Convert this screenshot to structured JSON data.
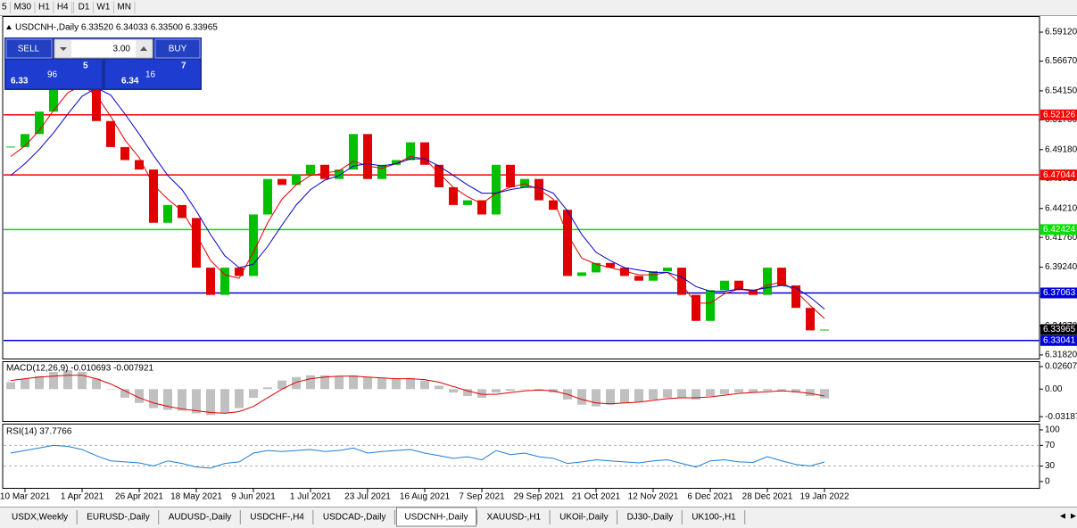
{
  "toolbar": {
    "timeframes": [
      "5",
      "M30",
      "H1",
      "H4",
      "D1",
      "W1",
      "MN"
    ]
  },
  "trade_panel": {
    "sell": "SELL",
    "lot": "3.00",
    "buy": "BUY",
    "bid_base": "6.33",
    "bid_big": "96",
    "bid_sup": "5",
    "ask_base": "6.34",
    "ask_big": "16",
    "ask_sup": "7"
  },
  "chart_data": [
    {
      "type": "candlestick",
      "title": "USDCNH-,Daily 6.33520 6.34033 6.33500 6.33965",
      "categories": [
        null,
        "10 Mar 2021",
        null,
        null,
        null,
        "1 Apr 2021",
        null,
        null,
        null,
        "26 Apr 2021",
        null,
        null,
        null,
        "18 May 2021",
        null,
        null,
        null,
        "9 Jun 2021",
        null,
        null,
        null,
        "1 Jul 2021",
        null,
        null,
        null,
        "23 Jul 2021",
        null,
        null,
        null,
        "16 Aug 2021",
        null,
        null,
        null,
        "7 Sep 2021",
        null,
        null,
        null,
        "29 Sep 2021",
        null,
        null,
        null,
        "21 Oct 2021",
        null,
        null,
        null,
        "12 Nov 2021",
        null,
        null,
        null,
        "6 Dec 2021",
        null,
        null,
        null,
        "28 Dec 2021",
        null,
        null,
        null,
        "19 Jan 2022"
      ],
      "values": [
        6.494,
        6.505,
        6.524,
        6.547,
        6.55,
        6.543,
        6.516,
        6.494,
        6.483,
        6.475,
        6.43,
        6.445,
        6.434,
        6.392,
        6.369,
        6.392,
        6.385,
        6.437,
        6.467,
        6.462,
        6.471,
        6.479,
        6.467,
        6.475,
        6.505,
        6.467,
        6.479,
        6.483,
        6.498,
        6.479,
        6.46,
        6.445,
        6.449,
        6.437,
        6.479,
        6.46,
        6.467,
        6.449,
        6.441,
        6.385,
        6.388,
        6.396,
        6.392,
        6.385,
        6.381,
        6.389,
        6.392,
        6.369,
        6.347,
        6.373,
        6.381,
        6.373,
        6.369,
        6.392,
        6.377,
        6.358,
        6.339,
        6.33965
      ],
      "up_color": "#00c000",
      "down_color": "#e00000",
      "series": [
        {
          "color": "#e00000",
          "values": [
            6.486,
            6.495,
            6.508,
            6.525,
            6.54,
            6.546,
            6.538,
            6.52,
            6.5,
            6.485,
            6.462,
            6.45,
            6.44,
            6.42,
            6.398,
            6.386,
            6.383,
            6.405,
            6.43,
            6.45,
            6.462,
            6.47,
            6.472,
            6.474,
            6.482,
            6.478,
            6.476,
            6.48,
            6.486,
            6.484,
            6.472,
            6.46,
            6.452,
            6.446,
            6.455,
            6.46,
            6.463,
            6.458,
            6.45,
            6.42,
            6.4,
            6.395,
            6.392,
            6.389,
            6.386,
            6.386,
            6.388,
            6.378,
            6.362,
            6.362,
            6.37,
            6.374,
            6.372,
            6.377,
            6.38,
            6.372,
            6.36,
            6.349
          ]
        },
        {
          "color": "#0000c8",
          "values": [
            6.47,
            6.48,
            6.492,
            6.506,
            6.522,
            6.537,
            6.544,
            6.538,
            6.522,
            6.505,
            6.487,
            6.47,
            6.458,
            6.44,
            6.42,
            6.402,
            6.392,
            6.395,
            6.41,
            6.428,
            6.445,
            6.458,
            6.466,
            6.47,
            6.478,
            6.48,
            6.478,
            6.48,
            6.484,
            6.484,
            6.478,
            6.47,
            6.462,
            6.455,
            6.455,
            6.458,
            6.46,
            6.46,
            6.455,
            6.44,
            6.42,
            6.405,
            6.398,
            6.392,
            6.39,
            6.388,
            6.388,
            6.384,
            6.376,
            6.372,
            6.372,
            6.374,
            6.373,
            6.375,
            6.377,
            6.375,
            6.367,
            6.357
          ]
        }
      ],
      "ylim": [
        6.3144,
        6.6048
      ],
      "yticks": [
        {
          "value": 6.5912,
          "label": "6.59120"
        },
        {
          "value": 6.5667,
          "label": "6.56670"
        },
        {
          "value": 6.5415,
          "label": "6.54150"
        },
        {
          "value": 6.517,
          "label": "6.51700"
        },
        {
          "value": 6.4918,
          "label": "6.49180"
        },
        {
          "value": 6.4673,
          "label": "6.46730"
        },
        {
          "value": 6.4421,
          "label": "6.44210"
        },
        {
          "value": 6.4176,
          "label": "6.41760"
        },
        {
          "value": 6.3924,
          "label": "6.39240"
        },
        {
          "value": 6.3679,
          "label": "6.36790"
        },
        {
          "value": 6.3427,
          "label": "6.34270"
        },
        {
          "value": 6.3182,
          "label": "6.31820"
        }
      ],
      "levels": [
        {
          "value": 6.52126,
          "color": "#ff0000"
        },
        {
          "value": 6.47044,
          "color": "#ff0000"
        },
        {
          "value": 6.42424,
          "color": "#00e000"
        },
        {
          "value": 6.37063,
          "color": "#0000dd"
        },
        {
          "value": 6.33041,
          "color": "#0000dd"
        }
      ],
      "current": 6.33965
    },
    {
      "type": "bar",
      "title": "MACD(12,26,9) -0.010693 -0.007921",
      "series": [
        {
          "color": "#c0c0c0",
          "values": [
            0.008,
            0.012,
            0.015,
            0.02,
            0.022,
            0.02,
            0.012,
            0.0,
            -0.01,
            -0.016,
            -0.022,
            -0.024,
            -0.025,
            -0.028,
            -0.03,
            -0.028,
            -0.022,
            -0.01,
            0.002,
            0.01,
            0.014,
            0.016,
            0.016,
            0.015,
            0.016,
            0.014,
            0.013,
            0.012,
            0.013,
            0.01,
            0.004,
            -0.004,
            -0.008,
            -0.01,
            -0.004,
            -0.002,
            0.0,
            -0.002,
            -0.004,
            -0.012,
            -0.018,
            -0.02,
            -0.018,
            -0.016,
            -0.015,
            -0.012,
            -0.01,
            -0.01,
            -0.012,
            -0.008,
            -0.006,
            -0.004,
            -0.004,
            -0.002,
            -0.002,
            -0.004,
            -0.008,
            -0.010693
          ]
        },
        {
          "color": "#e00000",
          "values": [
            0.01,
            0.012,
            0.014,
            0.015,
            0.016,
            0.016,
            0.012,
            0.006,
            -0.002,
            -0.01,
            -0.016,
            -0.02,
            -0.023,
            -0.025,
            -0.027,
            -0.028,
            -0.026,
            -0.02,
            -0.01,
            0.0,
            0.008,
            0.012,
            0.014,
            0.015,
            0.015,
            0.014,
            0.013,
            0.012,
            0.012,
            0.011,
            0.008,
            0.003,
            -0.002,
            -0.006,
            -0.006,
            -0.004,
            -0.002,
            -0.001,
            -0.002,
            -0.006,
            -0.012,
            -0.016,
            -0.017,
            -0.016,
            -0.015,
            -0.013,
            -0.011,
            -0.01,
            -0.01,
            -0.009,
            -0.007,
            -0.005,
            -0.004,
            -0.003,
            -0.002,
            -0.003,
            -0.005,
            -0.007921
          ]
        }
      ],
      "ylim": [
        -0.0379,
        0.0323
      ],
      "yticks": [
        0.02607,
        {
          "value": 0,
          "label": "0.00"
        },
        -0.031871
      ]
    },
    {
      "type": "line",
      "title": "RSI(14) 37.7766",
      "series": [
        {
          "color": "#1e7fd0",
          "values": [
            55,
            60,
            65,
            70,
            68,
            62,
            50,
            40,
            38,
            36,
            30,
            40,
            35,
            28,
            26,
            35,
            38,
            55,
            60,
            58,
            60,
            62,
            58,
            60,
            65,
            55,
            58,
            60,
            62,
            55,
            50,
            45,
            48,
            42,
            60,
            52,
            55,
            48,
            45,
            35,
            38,
            42,
            40,
            38,
            36,
            40,
            42,
            35,
            28,
            40,
            42,
            38,
            37,
            48,
            40,
            33,
            30,
            37.7766
          ]
        }
      ],
      "ylim": [
        -14,
        112
      ],
      "yticks": [
        100,
        70,
        30,
        0
      ]
    }
  ],
  "tabs": {
    "items": [
      "USDX,Weekly",
      "EURUSD-,Daily",
      "AUDUSD-,Daily",
      "USDCHF-,H4",
      "USDCAD-,Daily",
      "USDCNH-,Daily",
      "XAUUSD-,H1",
      "UKOil-,Daily",
      "DJ30-,Daily",
      "UK100-,H1"
    ],
    "active": 5
  }
}
